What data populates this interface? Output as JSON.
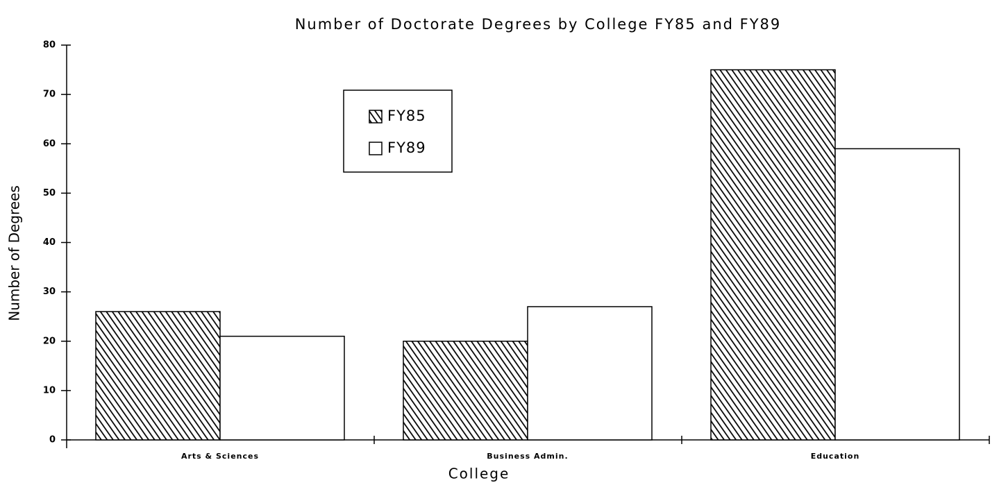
{
  "chart_data": {
    "type": "bar",
    "title": "Number of Doctorate Degrees by College FY85 and FY89",
    "x_label": "College",
    "y_label": "Number of Degrees",
    "categories": [
      "Arts & Sciences",
      "Business Admin.",
      "Education"
    ],
    "series": [
      {
        "name": "FY85",
        "color": "#000000",
        "pattern": "hatch",
        "values": [
          26,
          20,
          75
        ]
      },
      {
        "name": "FY89",
        "color": "#ffffff",
        "values": [
          21,
          27,
          59
        ]
      }
    ],
    "ylim": [
      0,
      80
    ],
    "yticks": [
      0,
      10,
      20,
      30,
      40,
      50,
      60,
      70,
      80
    ],
    "grid": false
  }
}
